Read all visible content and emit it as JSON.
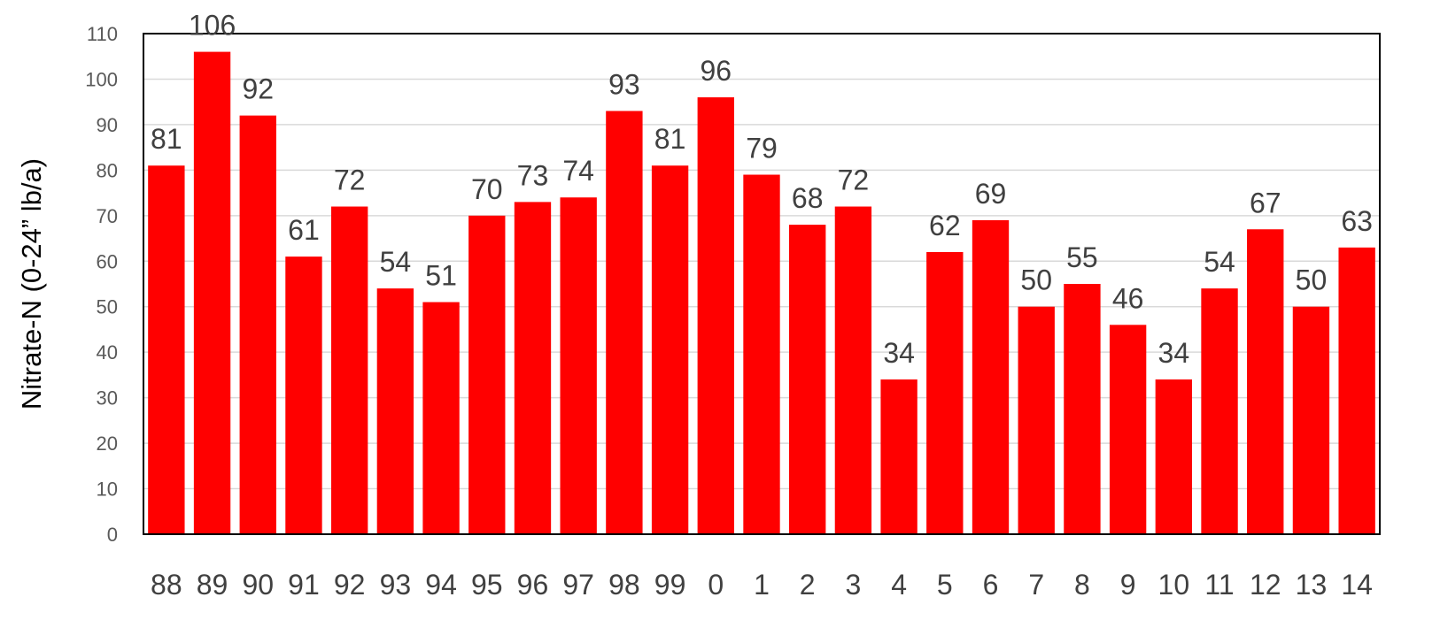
{
  "chart_data": {
    "type": "bar",
    "categories": [
      "88",
      "89",
      "90",
      "91",
      "92",
      "93",
      "94",
      "95",
      "96",
      "97",
      "98",
      "99",
      "0",
      "1",
      "2",
      "3",
      "4",
      "5",
      "6",
      "7",
      "8",
      "9",
      "10",
      "11",
      "12",
      "13",
      "14"
    ],
    "values": [
      81,
      106,
      92,
      61,
      72,
      54,
      51,
      70,
      73,
      74,
      93,
      81,
      96,
      79,
      68,
      72,
      34,
      62,
      69,
      50,
      55,
      46,
      34,
      54,
      67,
      50,
      63
    ],
    "title": "",
    "xlabel": "",
    "ylabel": "Nitrate-N (0-24” lb/a)",
    "ylim": [
      0,
      110
    ],
    "yticks": [
      0,
      10,
      20,
      30,
      40,
      50,
      60,
      70,
      80,
      90,
      100,
      110
    ],
    "grid": true,
    "legend": "none",
    "bar_color": "#FF0000",
    "grid_color": "#D9D9D9",
    "frame_color": "#000000"
  }
}
